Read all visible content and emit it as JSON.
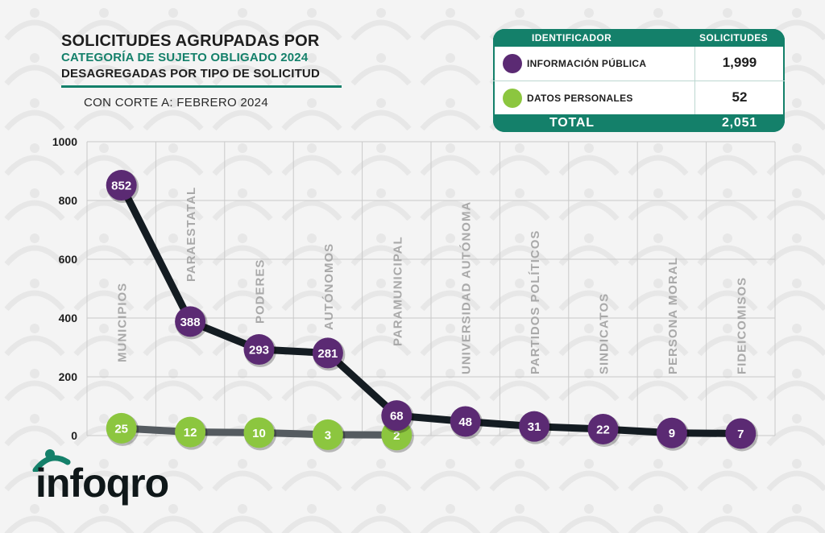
{
  "title": {
    "line1": "SOLICITUDES AGRUPADAS POR",
    "line2": "CATEGORÍA DE SUJETO OBLIGADO 2024",
    "line3": "DESAGREGADAS POR TIPO DE SOLICITUD",
    "cutoff": "CON CORTE A: FEBRERO 2024"
  },
  "legend_table": {
    "header_id": "IDENTIFICADOR",
    "header_count": "SOLICITUDES",
    "rows": [
      {
        "label": "INFORMACIÓN PÚBLICA",
        "value": "1,999",
        "color": "#5b2a73"
      },
      {
        "label": "DATOS PERSONALES",
        "value": "52",
        "color": "#8cc63f"
      }
    ],
    "total_label": "TOTAL",
    "total_value": "2,051"
  },
  "logo": {
    "text": "infoqro"
  },
  "colors": {
    "accent": "#14806a",
    "purple": "#5b2a73",
    "green": "#8cc63f",
    "line_dark": "#141c22",
    "line_gray": "#555b60"
  },
  "chart_data": {
    "type": "line",
    "categories": [
      "MUNICIPIOS",
      "PARAESTATAL",
      "PODERES",
      "AUTÓNOMOS",
      "PARAMUNICIPAL",
      "UNIVERSIDAD AUTÓNOMA",
      "PARTIDOS POLÍTICOS",
      "SINDICATOS",
      "PERSONA MORAL",
      "FIDEICOMISOS"
    ],
    "series": [
      {
        "name": "INFORMACIÓN PÚBLICA",
        "values": [
          852,
          388,
          293,
          281,
          68,
          48,
          31,
          22,
          9,
          7
        ]
      },
      {
        "name": "DATOS PERSONALES",
        "values": [
          25,
          12,
          10,
          3,
          2,
          null,
          null,
          null,
          null,
          null
        ]
      }
    ],
    "yticks": [
      0,
      200,
      400,
      600,
      800,
      1000
    ],
    "ylim": [
      0,
      1000
    ],
    "grid": true
  }
}
